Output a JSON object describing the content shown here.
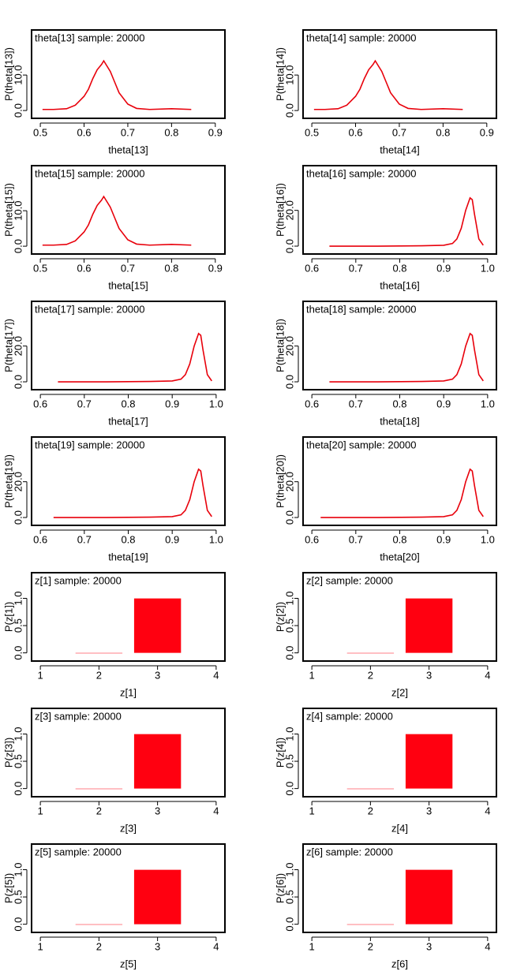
{
  "chart_data": [
    {
      "type": "line",
      "title": "theta[13] sample: 20000",
      "xlabel": "theta[13]",
      "ylabel": "P(theta[13])",
      "x": [
        0.505,
        0.53,
        0.56,
        0.58,
        0.6,
        0.61,
        0.62,
        0.63,
        0.64,
        0.645,
        0.65,
        0.66,
        0.67,
        0.68,
        0.7,
        0.72,
        0.75,
        0.8,
        0.845
      ],
      "values": [
        0.3,
        0.3,
        0.5,
        1.5,
        4,
        6,
        9,
        11.5,
        13,
        14,
        13,
        11,
        8,
        5,
        1.8,
        0.6,
        0.3,
        0.5,
        0.3
      ],
      "color": "#e8000b",
      "xlim": [
        0.48,
        0.922
      ],
      "ylim": [
        -2.2,
        22.7
      ],
      "xticks": [
        0.5,
        0.6,
        0.7,
        0.8,
        0.9
      ],
      "yticks": [
        {
          "value": 0,
          "label": "0.0"
        },
        {
          "value": 10,
          "label": "10.0"
        }
      ]
    },
    {
      "type": "line",
      "title": "theta[14] sample: 20000",
      "xlabel": "theta[14]",
      "ylabel": "P(theta[14])",
      "x": [
        0.505,
        0.53,
        0.56,
        0.58,
        0.6,
        0.61,
        0.62,
        0.63,
        0.64,
        0.645,
        0.65,
        0.66,
        0.67,
        0.68,
        0.7,
        0.72,
        0.75,
        0.8,
        0.845
      ],
      "values": [
        0.3,
        0.3,
        0.5,
        1.5,
        4,
        6,
        9,
        11.5,
        13,
        14,
        13,
        11,
        8,
        5,
        1.8,
        0.6,
        0.3,
        0.5,
        0.3
      ],
      "color": "#e8000b",
      "xlim": [
        0.48,
        0.922
      ],
      "ylim": [
        -2.2,
        22.7
      ],
      "xticks": [
        0.5,
        0.6,
        0.7,
        0.8,
        0.9
      ],
      "yticks": [
        {
          "value": 0,
          "label": "0.0"
        },
        {
          "value": 10,
          "label": "10.0"
        }
      ]
    },
    {
      "type": "line",
      "title": "theta[15] sample: 20000",
      "xlabel": "theta[15]",
      "ylabel": "P(theta[15])",
      "x": [
        0.505,
        0.53,
        0.56,
        0.58,
        0.6,
        0.61,
        0.62,
        0.63,
        0.64,
        0.645,
        0.65,
        0.66,
        0.67,
        0.68,
        0.7,
        0.72,
        0.75,
        0.8,
        0.845
      ],
      "values": [
        0.3,
        0.3,
        0.5,
        1.5,
        4,
        6,
        9,
        11.5,
        13,
        14,
        13,
        11,
        8,
        5,
        1.8,
        0.6,
        0.3,
        0.5,
        0.3
      ],
      "color": "#e8000b",
      "xlim": [
        0.48,
        0.922
      ],
      "ylim": [
        -2.2,
        22.7
      ],
      "xticks": [
        0.5,
        0.6,
        0.7,
        0.8,
        0.9
      ],
      "yticks": [
        {
          "value": 0,
          "label": "0.0"
        },
        {
          "value": 10,
          "label": "10.0"
        }
      ]
    },
    {
      "type": "line",
      "title": "theta[16] sample: 20000",
      "xlabel": "theta[16]",
      "ylabel": "P(theta[16])",
      "x": [
        0.64,
        0.7,
        0.75,
        0.8,
        0.85,
        0.9,
        0.92,
        0.93,
        0.94,
        0.95,
        0.96,
        0.965,
        0.97,
        0.98,
        0.99
      ],
      "values": [
        0,
        0,
        0,
        0.1,
        0.2,
        0.5,
        1.5,
        4,
        10,
        20,
        27,
        26,
        18,
        4,
        0.5
      ],
      "color": "#e8000b",
      "xlim": [
        0.58,
        1.02
      ],
      "ylim": [
        -4.4,
        45
      ],
      "xticks": [
        0.6,
        0.7,
        0.8,
        0.9,
        {
          "value": 1,
          "label": "1.0"
        }
      ],
      "yticks": [
        {
          "value": 0,
          "label": "0.0"
        },
        {
          "value": 20,
          "label": "20.0"
        }
      ]
    },
    {
      "type": "line",
      "title": "theta[17] sample: 20000",
      "xlabel": "theta[17]",
      "ylabel": "P(theta[17])",
      "x": [
        0.64,
        0.7,
        0.75,
        0.8,
        0.85,
        0.9,
        0.92,
        0.93,
        0.94,
        0.95,
        0.96,
        0.965,
        0.97,
        0.98,
        0.99
      ],
      "values": [
        0,
        0,
        0,
        0.1,
        0.2,
        0.5,
        1.5,
        4,
        10,
        20,
        27,
        26,
        18,
        4,
        0.5
      ],
      "color": "#e8000b",
      "xlim": [
        0.58,
        1.02
      ],
      "ylim": [
        -4.4,
        45
      ],
      "xticks": [
        0.6,
        0.7,
        0.8,
        0.9,
        {
          "value": 1,
          "label": "1.0"
        }
      ],
      "yticks": [
        {
          "value": 0,
          "label": "0.0"
        },
        {
          "value": 20,
          "label": "20.0"
        }
      ]
    },
    {
      "type": "line",
      "title": "theta[18] sample: 20000",
      "xlabel": "theta[18]",
      "ylabel": "P(theta[18])",
      "x": [
        0.64,
        0.7,
        0.75,
        0.8,
        0.85,
        0.9,
        0.92,
        0.93,
        0.94,
        0.95,
        0.96,
        0.965,
        0.97,
        0.98,
        0.99
      ],
      "values": [
        0,
        0,
        0,
        0.1,
        0.2,
        0.5,
        1.5,
        4,
        10,
        20,
        27,
        26,
        18,
        4,
        0.5
      ],
      "color": "#e8000b",
      "xlim": [
        0.58,
        1.02
      ],
      "ylim": [
        -4.4,
        45
      ],
      "xticks": [
        0.6,
        0.7,
        0.8,
        0.9,
        {
          "value": 1,
          "label": "1.0"
        }
      ],
      "yticks": [
        {
          "value": 0,
          "label": "0.0"
        },
        {
          "value": 20,
          "label": "20.0"
        }
      ]
    },
    {
      "type": "line",
      "title": "theta[19] sample: 20000",
      "xlabel": "theta[19]",
      "ylabel": "P(theta[19])",
      "x": [
        0.63,
        0.7,
        0.75,
        0.8,
        0.85,
        0.9,
        0.92,
        0.93,
        0.94,
        0.95,
        0.96,
        0.965,
        0.97,
        0.98,
        0.99
      ],
      "values": [
        0,
        0,
        0,
        0.1,
        0.2,
        0.5,
        1.5,
        4,
        10,
        20,
        27,
        26,
        18,
        4,
        0.5
      ],
      "color": "#e8000b",
      "xlim": [
        0.58,
        1.02
      ],
      "ylim": [
        -4.4,
        45
      ],
      "xticks": [
        0.6,
        0.7,
        0.8,
        0.9,
        {
          "value": 1,
          "label": "1.0"
        }
      ],
      "yticks": [
        {
          "value": 0,
          "label": "0.0"
        },
        {
          "value": 20,
          "label": "20.0"
        }
      ]
    },
    {
      "type": "line",
      "title": "theta[20] sample: 20000",
      "xlabel": "theta[20]",
      "ylabel": "P(theta[20])",
      "x": [
        0.62,
        0.7,
        0.75,
        0.8,
        0.85,
        0.9,
        0.92,
        0.93,
        0.94,
        0.95,
        0.96,
        0.965,
        0.97,
        0.98,
        0.99
      ],
      "values": [
        0,
        0,
        0,
        0.1,
        0.2,
        0.5,
        1.5,
        4,
        10,
        20,
        27,
        26,
        18,
        4,
        0.5
      ],
      "color": "#e8000b",
      "xlim": [
        0.58,
        1.02
      ],
      "ylim": [
        -4.4,
        45
      ],
      "xticks": [
        0.6,
        0.7,
        0.8,
        0.9,
        {
          "value": 1,
          "label": "1.0"
        }
      ],
      "yticks": [
        {
          "value": 0,
          "label": "0.0"
        },
        {
          "value": 20,
          "label": "20.0"
        }
      ]
    },
    {
      "type": "bar",
      "title": "z[1] sample: 20000",
      "xlabel": "z[1]",
      "ylabel": "P(z[1])",
      "x": [
        2,
        3
      ],
      "values": [
        0.002,
        0.998
      ],
      "color": "#ff0010",
      "xlim": [
        0.85,
        4.15
      ],
      "ylim": [
        -0.15,
        1.47
      ],
      "xticks": [
        1,
        2,
        3,
        4
      ],
      "yticks": [
        {
          "value": 0,
          "label": "0.0"
        },
        {
          "value": 0.5,
          "label": "0.5"
        },
        {
          "value": 1,
          "label": "1.0"
        }
      ]
    },
    {
      "type": "bar",
      "title": "z[2] sample: 20000",
      "xlabel": "z[2]",
      "ylabel": "P(z[2])",
      "x": [
        2,
        3
      ],
      "values": [
        0.002,
        0.998
      ],
      "color": "#ff0010",
      "xlim": [
        0.85,
        4.15
      ],
      "ylim": [
        -0.15,
        1.47
      ],
      "xticks": [
        1,
        2,
        3,
        4
      ],
      "yticks": [
        {
          "value": 0,
          "label": "0.0"
        },
        {
          "value": 0.5,
          "label": "0.5"
        },
        {
          "value": 1,
          "label": "1.0"
        }
      ]
    },
    {
      "type": "bar",
      "title": "z[3] sample: 20000",
      "xlabel": "z[3]",
      "ylabel": "P(z[3])",
      "x": [
        2,
        3
      ],
      "values": [
        0.002,
        0.998
      ],
      "color": "#ff0010",
      "xlim": [
        0.85,
        4.15
      ],
      "ylim": [
        -0.15,
        1.47
      ],
      "xticks": [
        1,
        2,
        3,
        4
      ],
      "yticks": [
        {
          "value": 0,
          "label": "0.0"
        },
        {
          "value": 0.5,
          "label": "0.5"
        },
        {
          "value": 1,
          "label": "1.0"
        }
      ]
    },
    {
      "type": "bar",
      "title": "z[4] sample: 20000",
      "xlabel": "z[4]",
      "ylabel": "P(z[4])",
      "x": [
        2,
        3
      ],
      "values": [
        0.002,
        0.998
      ],
      "color": "#ff0010",
      "xlim": [
        0.85,
        4.15
      ],
      "ylim": [
        -0.15,
        1.47
      ],
      "xticks": [
        1,
        2,
        3,
        4
      ],
      "yticks": [
        {
          "value": 0,
          "label": "0.0"
        },
        {
          "value": 0.5,
          "label": "0.5"
        },
        {
          "value": 1,
          "label": "1.0"
        }
      ]
    },
    {
      "type": "bar",
      "title": "z[5] sample: 20000",
      "xlabel": "z[5]",
      "ylabel": "P(z[5])",
      "x": [
        2,
        3
      ],
      "values": [
        0.002,
        0.998
      ],
      "color": "#ff0010",
      "xlim": [
        0.85,
        4.15
      ],
      "ylim": [
        -0.15,
        1.47
      ],
      "xticks": [
        1,
        2,
        3,
        4
      ],
      "yticks": [
        {
          "value": 0,
          "label": "0.0"
        },
        {
          "value": 0.5,
          "label": "0.5"
        },
        {
          "value": 1,
          "label": "1.0"
        }
      ]
    },
    {
      "type": "bar",
      "title": "z[6] sample: 20000",
      "xlabel": "z[6]",
      "ylabel": "P(z[6])",
      "x": [
        2,
        3
      ],
      "values": [
        0.002,
        0.998
      ],
      "color": "#ff0010",
      "xlim": [
        0.85,
        4.15
      ],
      "ylim": [
        -0.15,
        1.47
      ],
      "xticks": [
        1,
        2,
        3,
        4
      ],
      "yticks": [
        {
          "value": 0,
          "label": "0.0"
        },
        {
          "value": 0.5,
          "label": "0.5"
        },
        {
          "value": 1,
          "label": "1.0"
        }
      ]
    }
  ]
}
